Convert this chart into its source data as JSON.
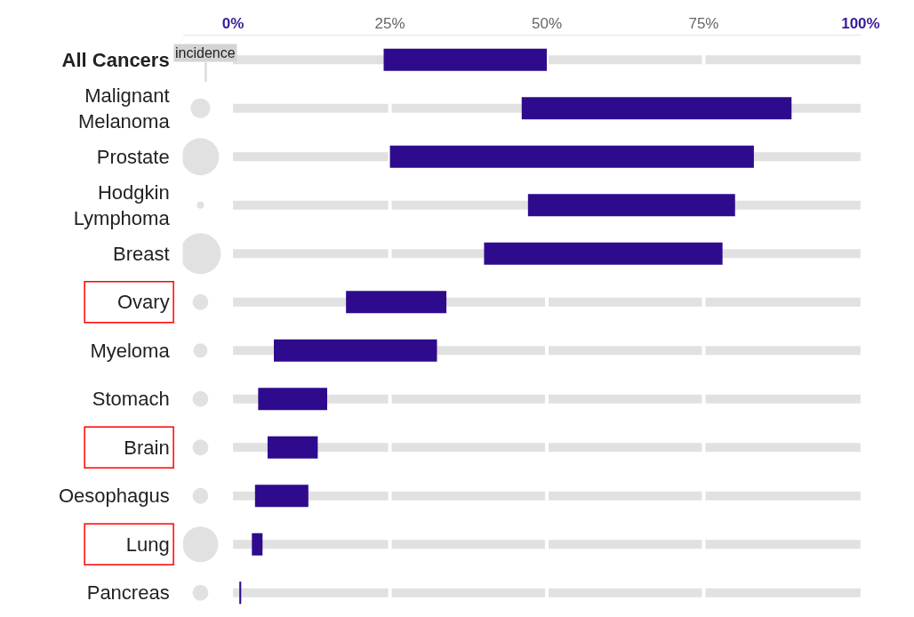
{
  "chart_data": {
    "type": "bar",
    "orientation": "horizontal",
    "categories": [
      "All Cancers",
      "Malignant Melanoma",
      "Prostate",
      "Hodgkin Lymphoma",
      "Breast",
      "Ovary",
      "Myeloma",
      "Stomach",
      "Brain",
      "Oesophagus",
      "Lung",
      "Pancreas"
    ],
    "series": [
      {
        "color": "#2e0b8c",
        "base": [
          24,
          46,
          25,
          47,
          40,
          18,
          6.5,
          4,
          5.5,
          3.5,
          3,
          1
        ],
        "values": [
          26,
          43,
          58,
          33,
          38,
          16,
          26,
          11,
          8,
          8.5,
          1.7,
          0.3
        ]
      },
      {
        "type": "bubble",
        "name": "incidence",
        "color": "#d4d4d4",
        "values": [
          null,
          -5.2,
          -5.2,
          -5.2,
          -5.2,
          -5.2,
          -5.2,
          -5.2,
          -5.2,
          -5.2,
          -5.2,
          -5.2
        ],
        "sizes": [
          null,
          0.23,
          0.83,
          0.03,
          1,
          0.15,
          0.12,
          0.15,
          0.15,
          0.15,
          0.76,
          0.15
        ]
      }
    ],
    "xlim": [
      -8,
      100
    ],
    "xticks": [
      {
        "value": 0,
        "label": "0%"
      },
      {
        "value": 25,
        "label": "25%"
      },
      {
        "value": 50,
        "label": "50%"
      },
      {
        "value": 75,
        "label": "75%"
      },
      {
        "value": 100,
        "label": "100%"
      }
    ],
    "grid": true
  }
}
